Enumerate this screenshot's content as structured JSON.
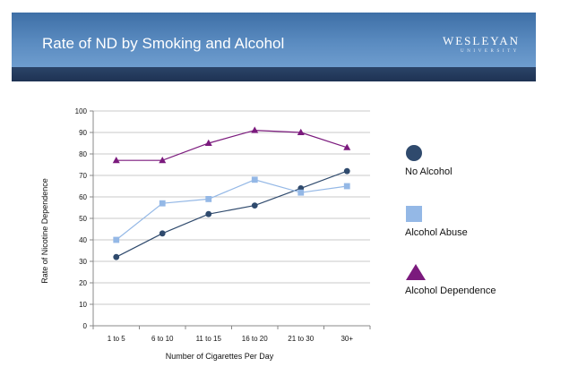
{
  "slide": {
    "title": "Rate of ND by Smoking and Alcohol",
    "logo": {
      "name": "WESLEYAN",
      "subtitle": "UNIVERSITY"
    }
  },
  "colors": {
    "banner": "#4f80b6",
    "stripe": "#24395c"
  },
  "chart_data": {
    "type": "line",
    "xlabel": "Number of Cigarettes Per Day",
    "ylabel": "Rate of Nicotine Dependence",
    "ylim": [
      0,
      100
    ],
    "yticks": [
      0,
      10,
      20,
      30,
      40,
      50,
      60,
      70,
      80,
      90,
      100
    ],
    "grid": true,
    "legend_placement": "right",
    "categories": [
      "1 to 5",
      "6 to 10",
      "11 to 15",
      "16 to 20",
      "21 to 30",
      "30+"
    ],
    "series": [
      {
        "name": "No Alcohol",
        "values": [
          32,
          43,
          52,
          56,
          64,
          72
        ],
        "color": "#2f4a6d",
        "marker": "circle"
      },
      {
        "name": "Alcohol Abuse",
        "values": [
          40,
          57,
          59,
          68,
          62,
          65
        ],
        "color": "#94b8e6",
        "marker": "square"
      },
      {
        "name": "Alcohol Dependence",
        "values": [
          77,
          77,
          85,
          91,
          90,
          83
        ],
        "color": "#7b1a7d",
        "marker": "triangle"
      }
    ]
  }
}
